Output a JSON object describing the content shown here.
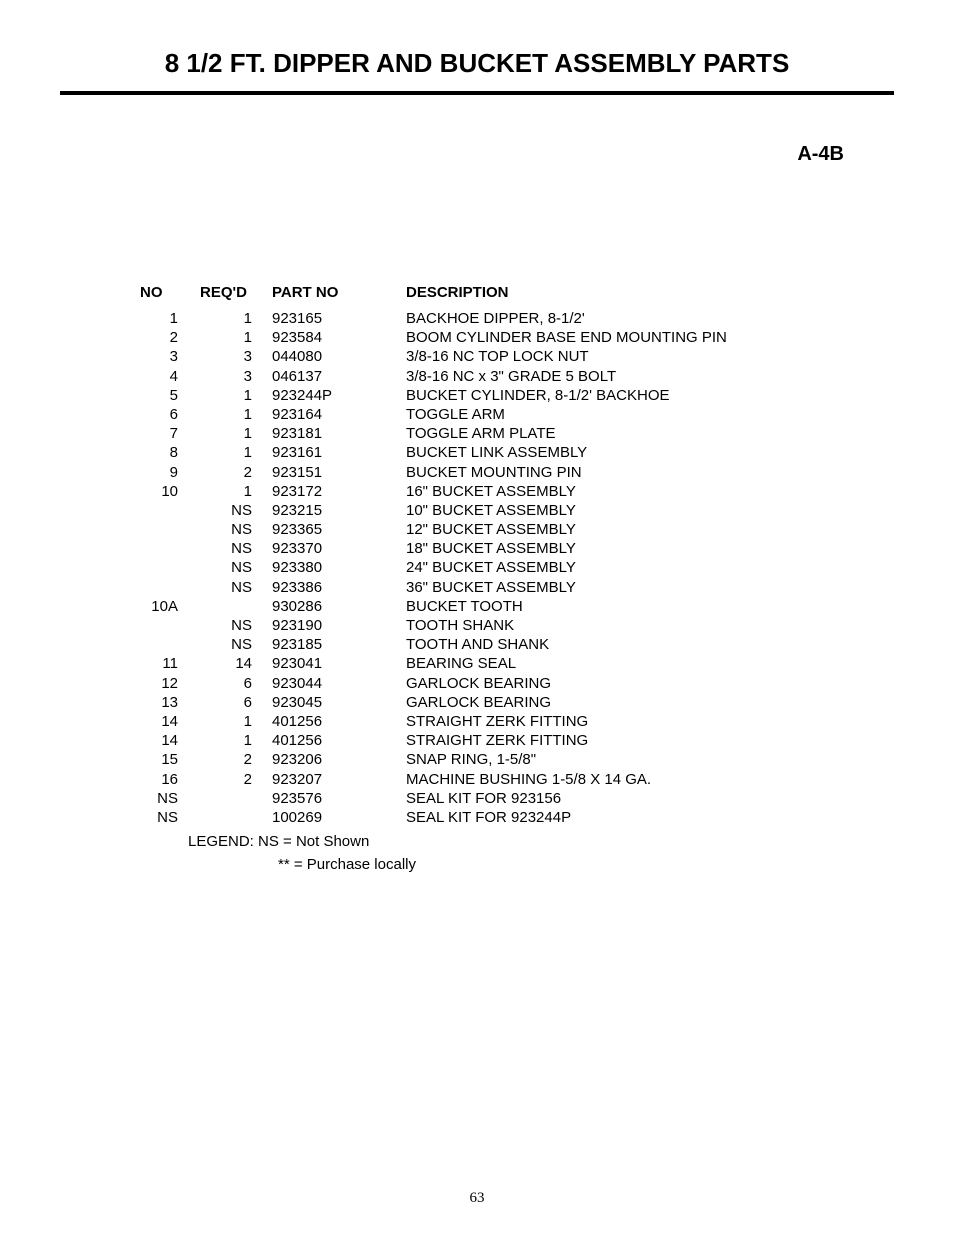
{
  "header": {
    "title": "8 1/2 FT. DIPPER AND BUCKET ASSEMBLY PARTS",
    "subtitle": "A-4B"
  },
  "table": {
    "columns": {
      "no": "NO",
      "reqd": "REQ'D",
      "partno": "PART NO",
      "desc": "DESCRIPTION"
    },
    "rows": [
      {
        "no": "1",
        "reqd": "1",
        "partno": "923165",
        "desc": "BACKHOE DIPPER, 8-1/2'"
      },
      {
        "no": "2",
        "reqd": "1",
        "partno": "923584",
        "desc": "BOOM CYLINDER BASE END MOUNTING PIN"
      },
      {
        "no": "3",
        "reqd": "3",
        "partno": "044080",
        "desc": "3/8-16 NC TOP LOCK NUT"
      },
      {
        "no": "4",
        "reqd": "3",
        "partno": "046137",
        "desc": "3/8-16 NC x 3\" GRADE 5 BOLT"
      },
      {
        "no": "5",
        "reqd": "1",
        "partno": "923244P",
        "desc": "BUCKET CYLINDER, 8-1/2' BACKHOE"
      },
      {
        "no": "6",
        "reqd": "1",
        "partno": "923164",
        "desc": "TOGGLE ARM"
      },
      {
        "no": "7",
        "reqd": "1",
        "partno": "923181",
        "desc": "TOGGLE ARM PLATE"
      },
      {
        "no": "8",
        "reqd": "1",
        "partno": "923161",
        "desc": "BUCKET LINK ASSEMBLY"
      },
      {
        "no": "9",
        "reqd": "2",
        "partno": "923151",
        "desc": "BUCKET MOUNTING PIN"
      },
      {
        "no": "10",
        "reqd": "1",
        "partno": "923172",
        "desc": "16\" BUCKET ASSEMBLY"
      },
      {
        "no": "",
        "reqd": "NS",
        "partno": "923215",
        "desc": "10\" BUCKET ASSEMBLY"
      },
      {
        "no": "",
        "reqd": "NS",
        "partno": "923365",
        "desc": "12\" BUCKET ASSEMBLY"
      },
      {
        "no": "",
        "reqd": "NS",
        "partno": "923370",
        "desc": "18\" BUCKET ASSEMBLY"
      },
      {
        "no": "",
        "reqd": "NS",
        "partno": "923380",
        "desc": "24\" BUCKET ASSEMBLY"
      },
      {
        "no": "",
        "reqd": "NS",
        "partno": "923386",
        "desc": "36\" BUCKET ASSEMBLY"
      },
      {
        "no": "10A",
        "reqd": "",
        "partno": "930286",
        "desc": "BUCKET TOOTH"
      },
      {
        "no": "",
        "reqd": "NS",
        "partno": "923190",
        "desc": "TOOTH SHANK"
      },
      {
        "no": "",
        "reqd": "NS",
        "partno": "923185",
        "desc": "TOOTH AND SHANK"
      },
      {
        "no": "11",
        "reqd": "14",
        "partno": "923041",
        "desc": "BEARING SEAL"
      },
      {
        "no": "12",
        "reqd": "6",
        "partno": "923044",
        "desc": "GARLOCK BEARING"
      },
      {
        "no": "13",
        "reqd": "6",
        "partno": "923045",
        "desc": "GARLOCK BEARING"
      },
      {
        "no": "14",
        "reqd": "1",
        "partno": "401256",
        "desc": "STRAIGHT ZERK FITTING"
      },
      {
        "no": "14",
        "reqd": "1",
        "partno": "401256",
        "desc": "STRAIGHT ZERK FITTING"
      },
      {
        "no": "15",
        "reqd": "2",
        "partno": "923206",
        "desc": "SNAP RING, 1-5/8\""
      },
      {
        "no": "16",
        "reqd": "2",
        "partno": "923207",
        "desc": "MACHINE BUSHING 1-5/8 X 14 GA."
      },
      {
        "no": "NS",
        "reqd": "",
        "partno": "923576",
        "desc": "SEAL KIT FOR 923156"
      },
      {
        "no": "NS",
        "reqd": "",
        "partno": "100269",
        "desc": "SEAL KIT FOR 923244P"
      }
    ]
  },
  "legend": {
    "line1": "LEGEND: NS = Not Shown",
    "line2": "** = Purchase locally"
  },
  "page_number": "63"
}
